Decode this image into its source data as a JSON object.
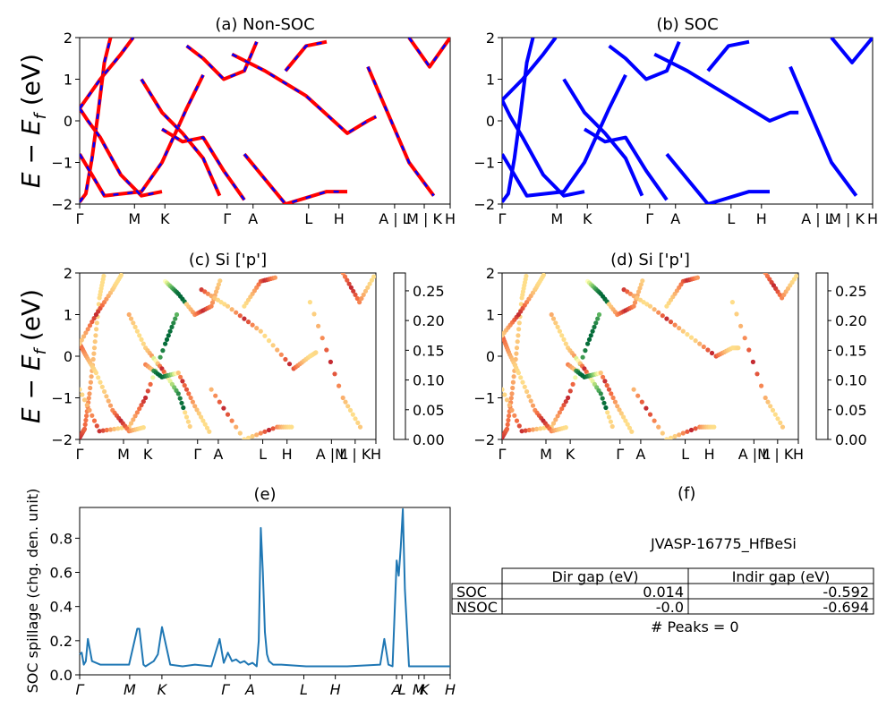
{
  "chart_data": [
    {
      "id": "a",
      "type": "line",
      "title": "(a) Non-SOC",
      "ylabel": "E − E_f (eV)",
      "ylim": [
        -2,
        2
      ],
      "yticks": [
        -2,
        -1,
        0,
        1,
        2
      ],
      "kpath": [
        "Γ",
        "M",
        "K",
        "Γ",
        "A",
        "L",
        "H",
        "A | L",
        "M | K",
        "H"
      ],
      "line_colors": [
        "#ff0000",
        "#0000ff"
      ],
      "bands": [
        [
          [
            0,
            -1.95
          ],
          [
            0.15,
            -1.75
          ],
          [
            0.3,
            -0.9
          ],
          [
            0.45,
            0.2
          ],
          [
            0.6,
            1.4
          ],
          [
            0.75,
            2.0
          ]
        ],
        [
          [
            0,
            -0.8
          ],
          [
            0.6,
            -1.8
          ],
          [
            1.5,
            -1.7
          ],
          [
            2,
            -1.0
          ],
          [
            2.6,
            0.3
          ],
          [
            3,
            1.1
          ]
        ],
        [
          [
            0,
            0.3
          ],
          [
            0.2,
            0.0
          ],
          [
            0.5,
            -0.4
          ],
          [
            1.0,
            -1.3
          ],
          [
            1.5,
            -1.8
          ],
          [
            2,
            -1.7
          ]
        ],
        [
          [
            0,
            0.3
          ],
          [
            0.5,
            1.0
          ],
          [
            1.0,
            1.6
          ],
          [
            1.3,
            2.0
          ]
        ],
        [
          [
            1.5,
            1.0
          ],
          [
            2,
            0.2
          ],
          [
            2.5,
            -0.3
          ],
          [
            3,
            -0.9
          ],
          [
            3.4,
            -1.8
          ]
        ],
        [
          [
            2,
            -0.2
          ],
          [
            2.5,
            -0.5
          ],
          [
            3,
            -0.4
          ],
          [
            3.5,
            -1.2
          ],
          [
            4,
            -1.9
          ]
        ],
        [
          [
            2.6,
            1.8
          ],
          [
            3,
            1.5
          ],
          [
            3.5,
            1.0
          ],
          [
            4,
            1.2
          ],
          [
            4.3,
            1.9
          ]
        ],
        [
          [
            4,
            -0.8
          ],
          [
            5,
            -2.0
          ],
          [
            6,
            -1.7
          ],
          [
            6.5,
            -1.7
          ]
        ],
        [
          [
            3.7,
            1.6
          ],
          [
            4.5,
            1.2
          ],
          [
            5.5,
            0.6
          ],
          [
            6.5,
            -0.3
          ],
          [
            7.0,
            0.0
          ],
          [
            7.2,
            0.1
          ]
        ],
        [
          [
            5.0,
            1.2
          ],
          [
            5.5,
            1.8
          ],
          [
            6.0,
            1.9
          ]
        ],
        [
          [
            7.0,
            1.3
          ],
          [
            8.0,
            -1.0
          ],
          [
            8.6,
            -1.8
          ]
        ],
        [
          [
            8.0,
            2.0
          ],
          [
            8.5,
            1.3
          ],
          [
            9,
            2.0
          ]
        ]
      ],
      "xmax": 9
    },
    {
      "id": "b",
      "type": "line",
      "title": "(b) SOC",
      "ylim": [
        -2,
        2
      ],
      "yticks": [
        -2,
        -1,
        0,
        1,
        2
      ],
      "kpath": [
        "Γ",
        "M",
        "K",
        "Γ",
        "A",
        "L",
        "H",
        "A | L",
        "M | K",
        "H"
      ],
      "line_colors": [
        "#0000ff"
      ],
      "bands": [
        [
          [
            0,
            -1.95
          ],
          [
            0.15,
            -1.75
          ],
          [
            0.3,
            -0.9
          ],
          [
            0.45,
            0.2
          ],
          [
            0.6,
            1.4
          ],
          [
            0.75,
            2.0
          ]
        ],
        [
          [
            0,
            -0.8
          ],
          [
            0.6,
            -1.8
          ],
          [
            1.5,
            -1.7
          ],
          [
            2,
            -1.0
          ],
          [
            2.6,
            0.3
          ],
          [
            3,
            1.1
          ]
        ],
        [
          [
            0,
            0.5
          ],
          [
            0.2,
            0.1
          ],
          [
            0.5,
            -0.4
          ],
          [
            1.0,
            -1.3
          ],
          [
            1.5,
            -1.8
          ],
          [
            2,
            -1.7
          ]
        ],
        [
          [
            0,
            0.5
          ],
          [
            0.5,
            1.0
          ],
          [
            1.0,
            1.6
          ],
          [
            1.3,
            2.0
          ]
        ],
        [
          [
            1.5,
            1.0
          ],
          [
            2,
            0.2
          ],
          [
            2.5,
            -0.3
          ],
          [
            3,
            -0.9
          ],
          [
            3.4,
            -1.8
          ]
        ],
        [
          [
            2,
            -0.2
          ],
          [
            2.5,
            -0.5
          ],
          [
            3,
            -0.4
          ],
          [
            3.5,
            -1.2
          ],
          [
            4,
            -1.9
          ]
        ],
        [
          [
            2.6,
            1.8
          ],
          [
            3,
            1.5
          ],
          [
            3.5,
            1.0
          ],
          [
            4,
            1.2
          ],
          [
            4.3,
            1.9
          ]
        ],
        [
          [
            4,
            -0.8
          ],
          [
            5,
            -2.0
          ],
          [
            6,
            -1.7
          ],
          [
            6.5,
            -1.7
          ]
        ],
        [
          [
            3.7,
            1.6
          ],
          [
            4.5,
            1.2
          ],
          [
            5.5,
            0.6
          ],
          [
            6.5,
            0.0
          ],
          [
            7.0,
            0.2
          ],
          [
            7.2,
            0.2
          ]
        ],
        [
          [
            5.0,
            1.2
          ],
          [
            5.5,
            1.8
          ],
          [
            6.0,
            1.9
          ]
        ],
        [
          [
            7.0,
            1.3
          ],
          [
            8.0,
            -1.0
          ],
          [
            8.6,
            -1.8
          ]
        ],
        [
          [
            8.0,
            2.0
          ],
          [
            8.5,
            1.4
          ],
          [
            9,
            2.0
          ]
        ]
      ],
      "xmax": 9
    },
    {
      "id": "c",
      "type": "scatter",
      "title": "(c)  Si ['p']",
      "ylabel": "E − E_f (eV)",
      "ylim": [
        -2,
        2
      ],
      "yticks": [
        -2,
        -1,
        0,
        1,
        2
      ],
      "kpath": [
        "Γ",
        "M",
        "K",
        "Γ",
        "A",
        "L",
        "H",
        "A |M",
        "L | K",
        "H"
      ],
      "colorbar": {
        "min": 0.0,
        "max": 0.28,
        "ticks": [
          "0.00",
          "0.05",
          "0.10",
          "0.15",
          "0.20",
          "0.25"
        ]
      },
      "xmax": 9
    },
    {
      "id": "d",
      "type": "scatter",
      "title": "(d) Si ['p']",
      "ylim": [
        -2,
        2
      ],
      "yticks": [
        -2,
        -1,
        0,
        1,
        2
      ],
      "kpath": [
        "Γ",
        "M",
        "K",
        "Γ",
        "A",
        "L",
        "H",
        "A |M",
        "L | K",
        "H"
      ],
      "colorbar": {
        "min": 0.0,
        "max": 0.28,
        "ticks": [
          "0.00",
          "0.05",
          "0.10",
          "0.15",
          "0.20",
          "0.25"
        ]
      },
      "xmax": 9
    },
    {
      "id": "e",
      "type": "line",
      "title": "(e)",
      "ylabel": "SOC spillage (chg. den. unit)",
      "ylim": [
        0,
        0.98
      ],
      "yticks": [
        0.0,
        0.2,
        0.4,
        0.6,
        0.8
      ],
      "kpath": [
        "Γ",
        "M",
        "K",
        "Γ",
        "A",
        "L",
        "H",
        "A",
        "L",
        "M",
        "K",
        "H"
      ],
      "line_color": "#1f77b4",
      "x": [
        0,
        0.05,
        0.1,
        0.15,
        0.2,
        0.3,
        0.5,
        1.2,
        1.4,
        1.45,
        1.55,
        1.6,
        1.8,
        1.9,
        2.0,
        2.2,
        2.5,
        2.8,
        3.2,
        3.4,
        3.5,
        3.6,
        3.7,
        3.8,
        3.9,
        4.0,
        4.1,
        4.2,
        4.3,
        4.35,
        4.4,
        4.45,
        4.5,
        4.55,
        4.6,
        4.7,
        4.9,
        5.5,
        6.5,
        7.3,
        7.4,
        7.5,
        7.6,
        7.7,
        7.75,
        7.8,
        7.85,
        7.9,
        8.0,
        8.5,
        9.0
      ],
      "y": [
        0.12,
        0.13,
        0.06,
        0.08,
        0.21,
        0.08,
        0.06,
        0.06,
        0.27,
        0.27,
        0.06,
        0.05,
        0.08,
        0.12,
        0.28,
        0.06,
        0.05,
        0.06,
        0.05,
        0.21,
        0.07,
        0.13,
        0.08,
        0.09,
        0.07,
        0.08,
        0.06,
        0.07,
        0.05,
        0.2,
        0.86,
        0.6,
        0.25,
        0.12,
        0.08,
        0.06,
        0.06,
        0.05,
        0.05,
        0.06,
        0.21,
        0.06,
        0.05,
        0.67,
        0.58,
        0.75,
        0.97,
        0.5,
        0.05,
        0.05,
        0.05
      ],
      "xmax": 9
    }
  ],
  "panel_f": {
    "title": "(f)",
    "formula": "JVASP-16775_HfBeSi",
    "headers": [
      "Dir gap (eV)",
      "Indir gap (eV)"
    ],
    "rows": [
      {
        "label": "SOC",
        "dir": "0.014",
        "indir": "-0.592"
      },
      {
        "label": "NSOC",
        "dir": "-0.0",
        "indir": "-0.694"
      }
    ],
    "peaks": "# Peaks = 0"
  }
}
